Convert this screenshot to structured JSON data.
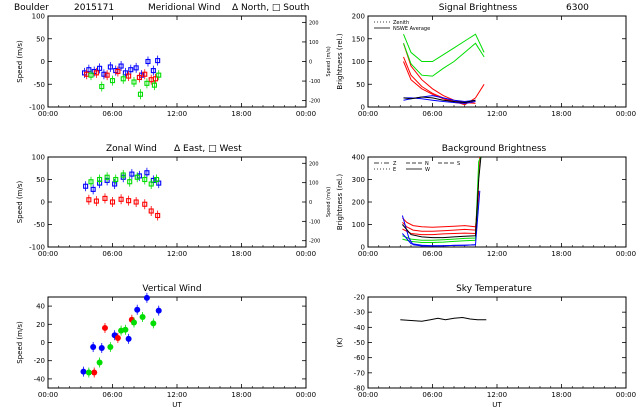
{
  "figure": {
    "station": "Boulder",
    "date_code": "2015171",
    "wavelength": "6300",
    "colors": {
      "red": "#ff0000",
      "green": "#00dd00",
      "blue": "#0000ff",
      "black": "#000000"
    }
  },
  "chart_data": [
    {
      "id": "meridional",
      "type": "scatter",
      "title": "Meridional Wind",
      "title_note": "Δ North, □ South",
      "ylabel": "Speed (m/s)",
      "y2label": "Speed (m/s)",
      "xlabel": "",
      "xlim": [
        0,
        24
      ],
      "ylim": [
        -100,
        100
      ],
      "x_ticks": [
        0,
        6,
        12,
        18,
        24
      ],
      "x_tick_labels": [
        "00:00",
        "06:00",
        "12:00",
        "18:00",
        "00:00"
      ],
      "y_ticks": [
        -100,
        -50,
        0,
        50,
        100
      ],
      "y2_ticks": [
        {
          "value": 86,
          "label": "200"
        },
        {
          "value": 43,
          "label": "100"
        },
        {
          "value": 0,
          "label": "0"
        },
        {
          "value": -43,
          "label": "-100"
        },
        {
          "value": -86,
          "label": "-200"
        }
      ],
      "series": [
        {
          "color": "blue",
          "marker": "square",
          "x": [
            3.4,
            3.8,
            4.3,
            4.8,
            5.2,
            5.8,
            6.3,
            6.8,
            7.2,
            7.7,
            8.2,
            8.7,
            9.3,
            9.8,
            10.2
          ],
          "y": [
            -25,
            -18,
            -22,
            -15,
            -28,
            -12,
            -20,
            -10,
            -25,
            -18,
            -14,
            -30,
            0,
            -20,
            2
          ]
        },
        {
          "color": "red",
          "marker": "square",
          "x": [
            3.6,
            4.5,
            5.5,
            6.5,
            7.5,
            8.5,
            9.0,
            9.6,
            10.0
          ],
          "y": [
            -28,
            -25,
            -30,
            -22,
            -32,
            -35,
            -28,
            -40,
            -38
          ]
        },
        {
          "color": "green",
          "marker": "square",
          "x": [
            4.0,
            5.0,
            6.0,
            7.0,
            8.0,
            8.6,
            9.2,
            9.9,
            10.3
          ],
          "y": [
            -30,
            -55,
            -42,
            -38,
            -45,
            -72,
            -48,
            -52,
            -30
          ]
        }
      ]
    },
    {
      "id": "signal",
      "type": "line",
      "title": "Signal Brightness",
      "title_right": "6300",
      "ylabel": "Brightness (rel.)",
      "xlabel": "",
      "xlim": [
        0,
        24
      ],
      "ylim": [
        0,
        200
      ],
      "x_ticks": [
        0,
        6,
        12,
        18,
        24
      ],
      "x_tick_labels": [
        "00:00",
        "06:00",
        "12:00",
        "18:00",
        "00:00"
      ],
      "y_ticks": [
        0,
        50,
        100,
        150,
        200
      ],
      "legend": [
        {
          "label": "Zenith",
          "style": "dotted"
        },
        {
          "label": "NSWE Average",
          "style": "solid"
        }
      ],
      "series": [
        {
          "color": "red",
          "x": [
            3.3,
            4.0,
            5.0,
            6.0,
            7.0,
            8.0,
            9.0,
            10.0
          ],
          "y": [
            140,
            90,
            60,
            40,
            25,
            15,
            10,
            8
          ]
        },
        {
          "color": "red",
          "x": [
            3.3,
            4.0,
            5.0,
            6.0,
            7.0,
            8.0,
            9.0,
            10.0,
            10.8
          ],
          "y": [
            110,
            70,
            45,
            30,
            20,
            12,
            5,
            20,
            50
          ]
        },
        {
          "color": "red",
          "x": [
            3.3,
            4.0,
            5.0,
            6.0,
            7.0,
            8.0,
            9.0,
            10.0
          ],
          "y": [
            100,
            60,
            40,
            28,
            18,
            10,
            8,
            12
          ]
        },
        {
          "color": "green",
          "x": [
            3.3,
            4.0,
            5.0,
            6.0,
            7.0,
            8.0,
            9.0,
            10.0,
            10.8
          ],
          "y": [
            160,
            120,
            100,
            100,
            115,
            130,
            145,
            160,
            120
          ]
        },
        {
          "color": "green",
          "x": [
            3.3,
            4.0,
            5.0,
            6.0,
            7.0,
            8.0,
            9.0,
            10.0,
            10.8
          ],
          "y": [
            140,
            95,
            70,
            68,
            85,
            100,
            120,
            140,
            110
          ]
        },
        {
          "color": "blue",
          "x": [
            3.3,
            4.0,
            5.0,
            6.0,
            7.0,
            8.0,
            9.0,
            10.0
          ],
          "y": [
            15,
            18,
            22,
            25,
            20,
            15,
            12,
            15
          ]
        },
        {
          "color": "blue",
          "x": [
            3.3,
            4.0,
            5.0,
            6.0,
            7.0,
            8.0,
            9.0,
            10.0
          ],
          "y": [
            20,
            20,
            18,
            15,
            12,
            10,
            8,
            12
          ]
        },
        {
          "color": "black",
          "x": [
            3.3,
            4.0,
            5.0,
            6.0,
            7.0,
            8.0,
            9.0,
            10.0
          ],
          "y": [
            20,
            18,
            22,
            20,
            15,
            12,
            10,
            15
          ]
        }
      ]
    },
    {
      "id": "zonal",
      "type": "scatter",
      "title": "Zonal Wind",
      "title_note": "Δ East, □ West",
      "ylabel": "Speed (m/s)",
      "y2label": "Speed (m/s)",
      "xlabel": "",
      "xlim": [
        0,
        24
      ],
      "ylim": [
        -100,
        100
      ],
      "x_ticks": [
        0,
        6,
        12,
        18,
        24
      ],
      "x_tick_labels": [
        "00:00",
        "06:00",
        "12:00",
        "18:00",
        "00:00"
      ],
      "y_ticks": [
        -100,
        -50,
        0,
        50,
        100
      ],
      "y2_ticks": [
        {
          "value": 86,
          "label": "200"
        },
        {
          "value": 43,
          "label": "100"
        },
        {
          "value": 0,
          "label": "0"
        },
        {
          "value": -43,
          "label": "-100"
        },
        {
          "value": -86,
          "label": "-200"
        }
      ],
      "series": [
        {
          "color": "blue",
          "marker": "square",
          "x": [
            3.5,
            4.2,
            4.8,
            5.5,
            6.2,
            7.0,
            7.8,
            8.5,
            9.2,
            9.8,
            10.3
          ],
          "y": [
            35,
            28,
            42,
            48,
            40,
            55,
            62,
            58,
            65,
            48,
            42
          ]
        },
        {
          "color": "green",
          "marker": "square",
          "x": [
            4.0,
            4.8,
            5.5,
            6.3,
            7.0,
            7.6,
            8.3,
            9.0,
            9.6,
            10.1
          ],
          "y": [
            45,
            50,
            55,
            50,
            60,
            45,
            55,
            50,
            40,
            50
          ]
        },
        {
          "color": "red",
          "marker": "square",
          "x": [
            3.8,
            4.5,
            5.3,
            6.0,
            6.8,
            7.5,
            8.2,
            9.0,
            9.6,
            10.2
          ],
          "y": [
            5,
            2,
            8,
            0,
            6,
            3,
            0,
            -5,
            -20,
            -30
          ]
        }
      ]
    },
    {
      "id": "background",
      "type": "line",
      "title": "Background Brightness",
      "ylabel": "Brightness (rel.)",
      "xlabel": "",
      "xlim": [
        0,
        24
      ],
      "ylim": [
        0,
        400
      ],
      "x_ticks": [
        0,
        6,
        12,
        18,
        24
      ],
      "x_tick_labels": [
        "00:00",
        "06:00",
        "12:00",
        "18:00",
        "00:00"
      ],
      "y_ticks": [
        0,
        100,
        200,
        300,
        400
      ],
      "legend": [
        {
          "label": "Z",
          "style": "dashdot"
        },
        {
          "label": "N",
          "style": "dashed"
        },
        {
          "label": "S",
          "style": "dashed"
        },
        {
          "label": "E",
          "style": "dotted"
        },
        {
          "label": "W",
          "style": "solid"
        }
      ],
      "series": [
        {
          "color": "red",
          "x": [
            3.2,
            3.6,
            4.2,
            5.0,
            6.0,
            7.0,
            8.0,
            9.0,
            10.0,
            10.2,
            10.3,
            10.4
          ],
          "y": [
            130,
            110,
            95,
            90,
            88,
            90,
            92,
            95,
            90,
            180,
            350,
            400
          ]
        },
        {
          "color": "red",
          "x": [
            3.2,
            3.6,
            4.2,
            5.0,
            6.0,
            7.0,
            8.0,
            9.0,
            10.0,
            10.3
          ],
          "y": [
            110,
            90,
            75,
            70,
            70,
            72,
            75,
            78,
            75,
            300
          ]
        },
        {
          "color": "red",
          "x": [
            3.2,
            4.0,
            5.0,
            6.0,
            7.0,
            8.0,
            9.0,
            10.0,
            10.3
          ],
          "y": [
            80,
            60,
            55,
            55,
            58,
            60,
            62,
            60,
            250
          ]
        },
        {
          "color": "green",
          "x": [
            3.2,
            4.0,
            5.0,
            6.0,
            7.0,
            8.0,
            9.0,
            10.0,
            10.3,
            10.5
          ],
          "y": [
            50,
            35,
            30,
            30,
            32,
            35,
            38,
            40,
            380,
            400
          ]
        },
        {
          "color": "green",
          "x": [
            3.2,
            4.0,
            5.0,
            6.0,
            7.0,
            8.0,
            9.0,
            10.0,
            10.3
          ],
          "y": [
            35,
            25,
            20,
            20,
            22,
            25,
            28,
            30,
            200
          ]
        },
        {
          "color": "blue",
          "x": [
            3.2,
            3.8,
            4.2,
            5.0,
            6.0,
            7.0,
            8.0,
            9.0,
            10.0,
            10.4
          ],
          "y": [
            140,
            40,
            10,
            5,
            5,
            6,
            7,
            8,
            10,
            250
          ]
        },
        {
          "color": "blue",
          "x": [
            3.2,
            4.0,
            5.0,
            6.0,
            7.0,
            8.0,
            9.0,
            10.0
          ],
          "y": [
            60,
            15,
            8,
            6,
            6,
            7,
            8,
            10
          ]
        },
        {
          "color": "black",
          "x": [
            3.2,
            4.0,
            5.0,
            6.0,
            7.0,
            8.0,
            9.0,
            10.0,
            10.3,
            10.5
          ],
          "y": [
            100,
            55,
            45,
            42,
            42,
            45,
            48,
            50,
            300,
            400
          ]
        }
      ]
    },
    {
      "id": "vertical",
      "type": "scatter",
      "title": "Vertical Wind",
      "ylabel": "Speed (m/s)",
      "xlabel": "UT",
      "xlim": [
        0,
        24
      ],
      "ylim": [
        -50,
        50
      ],
      "x_ticks": [
        0,
        6,
        12,
        18,
        24
      ],
      "x_tick_labels": [
        "00:00",
        "06:00",
        "12:00",
        "18:00",
        "00:00"
      ],
      "y_ticks": [
        -40,
        -20,
        0,
        20,
        40
      ],
      "series": [
        {
          "color": "blue",
          "marker": "circle",
          "x": [
            3.3,
            4.2,
            5.0,
            6.2,
            7.5,
            8.3,
            9.2,
            10.3
          ],
          "y": [
            -32,
            -5,
            -6,
            8,
            4,
            36,
            49,
            35
          ]
        },
        {
          "color": "red",
          "marker": "circle",
          "x": [
            4.3,
            5.3,
            6.5,
            7.8
          ],
          "y": [
            -33,
            16,
            5,
            25
          ]
        },
        {
          "color": "green",
          "marker": "circle",
          "x": [
            3.8,
            4.8,
            5.8,
            6.8,
            7.2,
            8.0,
            8.8,
            9.8
          ],
          "y": [
            -33,
            -22,
            -5,
            13,
            14,
            22,
            28,
            21
          ]
        }
      ]
    },
    {
      "id": "sky",
      "type": "line",
      "title": "Sky Temperature",
      "ylabel": "(K)",
      "xlabel": "UT",
      "xlim": [
        0,
        24
      ],
      "ylim": [
        -80,
        -20
      ],
      "x_ticks": [
        0,
        6,
        12,
        18,
        24
      ],
      "x_tick_labels": [
        "00:00",
        "06:00",
        "12:00",
        "18:00",
        "00:00"
      ],
      "y_ticks": [
        -80,
        -70,
        -60,
        -50,
        -40,
        -30,
        -20
      ],
      "series": [
        {
          "color": "black",
          "x": [
            3.0,
            4.0,
            5.0,
            5.8,
            6.5,
            7.2,
            8.0,
            8.8,
            9.5,
            10.2,
            11.0
          ],
          "y": [
            -35,
            -35.5,
            -36,
            -35,
            -34,
            -35,
            -34,
            -33.5,
            -34.5,
            -35,
            -35
          ]
        }
      ]
    }
  ]
}
